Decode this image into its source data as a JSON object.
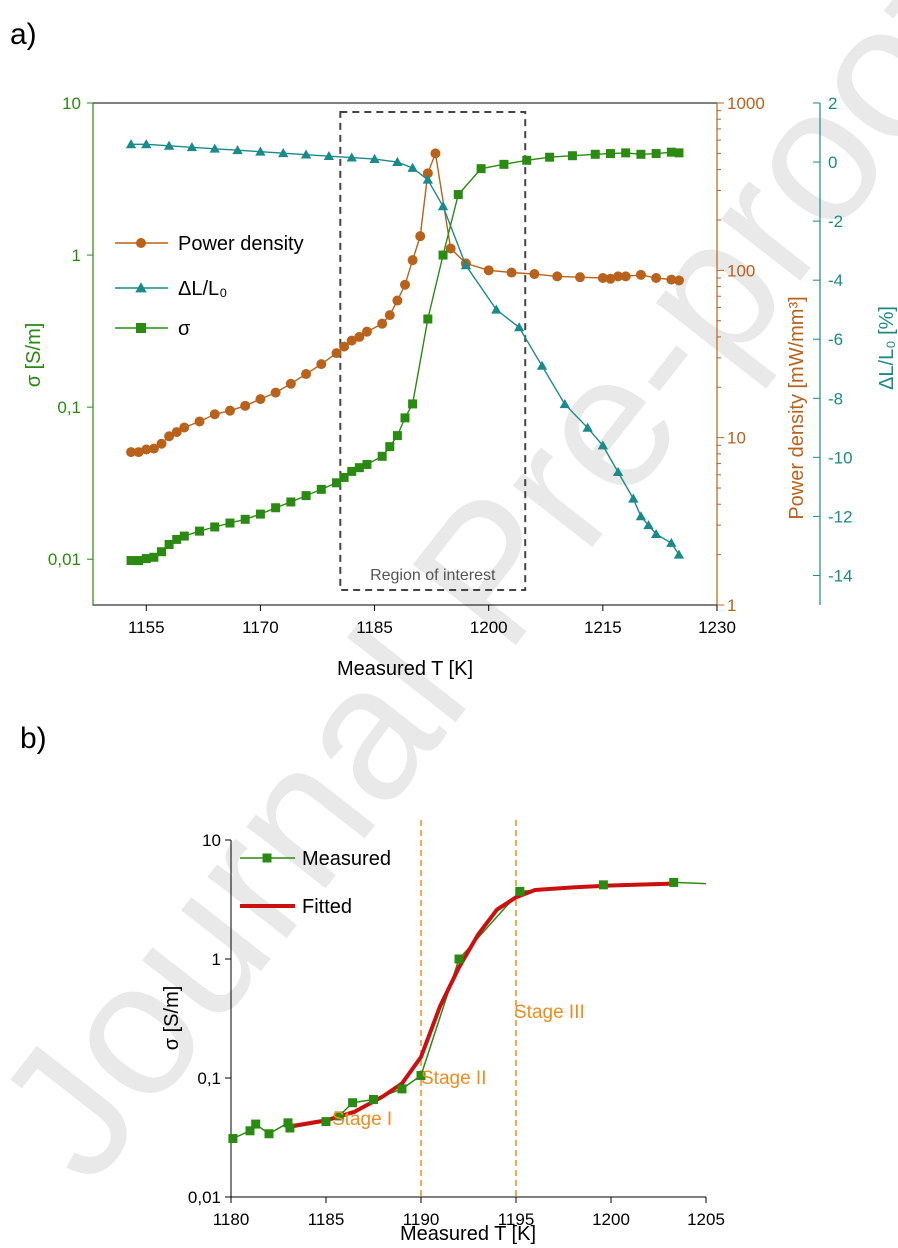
{
  "watermark": "Journal Pre-proof",
  "colors": {
    "sigma": "#2a8a12",
    "power": "#b8621b",
    "shrink": "#1a8a8a",
    "fitted": "#cc1010",
    "stage": "#f08c1e",
    "roi": "#444444"
  },
  "chart_data": [
    {
      "panel_label": "a)",
      "type": "line",
      "xlabel": "Measured T [K]",
      "xlim": [
        1148,
        1230
      ],
      "xticks": [
        1155,
        1170,
        1185,
        1200,
        1215,
        1230
      ],
      "annotation": "Region of interest",
      "region_of_interest": [
        1180.5,
        1204.8
      ],
      "axes": {
        "left": {
          "label": "σ [S/m]",
          "scale": "log",
          "lim": [
            0.005,
            10
          ],
          "ticks": [
            0.01,
            0.1,
            1,
            10
          ],
          "tick_labels": [
            "0,01",
            "0,1",
            "1",
            "10"
          ],
          "color": "#2a8a12"
        },
        "right1": {
          "label": "Power density [mW/mm³]",
          "scale": "log",
          "lim": [
            1,
            1000
          ],
          "ticks": [
            1,
            10,
            100,
            1000
          ],
          "tick_labels": [
            "1",
            "10",
            "100",
            "1000"
          ],
          "color": "#b8621b"
        },
        "right2": {
          "label": "ΔL/L₀ [%]",
          "scale": "linear",
          "lim": [
            -15,
            2
          ],
          "ticks": [
            -14,
            -12,
            -10,
            -8,
            -6,
            -4,
            -2,
            0,
            2
          ],
          "tick_labels": [
            "-14",
            "-12",
            "-10",
            "-8",
            "-6",
            "-4",
            "-2",
            "0",
            "2"
          ],
          "color": "#1a8a8a"
        }
      },
      "legend": {
        "position": "upper-left"
      },
      "series": [
        {
          "name": "Power density",
          "axis": "right1",
          "marker": "circle",
          "color": "#b8621b",
          "x": [
            1153,
            1154,
            1155,
            1156,
            1157,
            1158,
            1159,
            1160,
            1162,
            1164,
            1166,
            1168,
            1170,
            1172,
            1174,
            1176,
            1178,
            1180,
            1181,
            1182,
            1183,
            1184,
            1186,
            1187,
            1188,
            1189,
            1190,
            1191,
            1192,
            1193,
            1195,
            1197,
            1200,
            1203,
            1206,
            1209,
            1212,
            1215,
            1216,
            1217,
            1218,
            1220,
            1222,
            1224,
            1225
          ],
          "y": [
            8.2,
            8.2,
            8.5,
            8.6,
            9.2,
            10.2,
            10.8,
            11.5,
            12.5,
            13.8,
            14.5,
            15.5,
            17.0,
            18.6,
            21.0,
            24.0,
            27.5,
            32.0,
            35.0,
            38.0,
            40.0,
            43.0,
            48.0,
            54.0,
            66.0,
            82.0,
            115.0,
            160.0,
            380.0,
            500.0,
            135.0,
            110.0,
            100.0,
            97.0,
            95.0,
            92.0,
            91.0,
            90.0,
            89.0,
            92.0,
            92.0,
            94.0,
            90.0,
            88.0,
            87.0
          ]
        },
        {
          "name": "ΔL/L₀",
          "axis": "right2",
          "marker": "triangle",
          "color": "#1a8a8a",
          "x": [
            1153,
            1155,
            1158,
            1161,
            1164,
            1167,
            1170,
            1173,
            1176,
            1179,
            1182,
            1185,
            1188,
            1190,
            1192,
            1194,
            1197,
            1201,
            1204,
            1207,
            1210,
            1213,
            1215,
            1217,
            1219,
            1220,
            1221,
            1222,
            1224,
            1225
          ],
          "y": [
            0.6,
            0.6,
            0.55,
            0.5,
            0.45,
            0.4,
            0.35,
            0.3,
            0.25,
            0.2,
            0.15,
            0.1,
            0.0,
            -0.2,
            -0.6,
            -1.5,
            -3.5,
            -5.0,
            -5.6,
            -6.9,
            -8.2,
            -9.0,
            -9.6,
            -10.5,
            -11.4,
            -12.0,
            -12.3,
            -12.6,
            -12.9,
            -13.3
          ]
        },
        {
          "name": "σ",
          "axis": "left",
          "marker": "square",
          "color": "#2a8a12",
          "x": [
            1153,
            1154,
            1155,
            1156,
            1157,
            1158,
            1159,
            1160,
            1162,
            1164,
            1166,
            1168,
            1170,
            1172,
            1174,
            1176,
            1178,
            1180,
            1181,
            1182,
            1183,
            1184,
            1186,
            1187,
            1188,
            1189,
            1190,
            1192,
            1194,
            1196,
            1199,
            1202,
            1205,
            1208,
            1211,
            1214,
            1216,
            1218,
            1220,
            1222,
            1224,
            1225
          ],
          "y": [
            0.0098,
            0.0098,
            0.0101,
            0.0103,
            0.0112,
            0.0125,
            0.0135,
            0.0142,
            0.0153,
            0.0163,
            0.0173,
            0.0183,
            0.0198,
            0.0218,
            0.0238,
            0.0262,
            0.0288,
            0.0318,
            0.0345,
            0.0378,
            0.04,
            0.042,
            0.0475,
            0.055,
            0.065,
            0.085,
            0.105,
            0.38,
            1.0,
            2.5,
            3.7,
            3.95,
            4.2,
            4.4,
            4.5,
            4.6,
            4.65,
            4.7,
            4.6,
            4.65,
            4.75,
            4.7
          ]
        }
      ]
    },
    {
      "panel_label": "b)",
      "type": "line",
      "xlabel": "Measured T [K]",
      "ylabel": "σ [S/m]",
      "xlim": [
        1180,
        1205
      ],
      "ylim": [
        0.01,
        10
      ],
      "yscale": "log",
      "xticks": [
        1180,
        1185,
        1190,
        1195,
        1200,
        1205
      ],
      "yticks": [
        0.01,
        0.1,
        1,
        10
      ],
      "ytick_labels": [
        "0,01",
        "0,1",
        "1",
        "10"
      ],
      "legend": {
        "position": "upper-left"
      },
      "stage_boundaries": [
        1190,
        1195
      ],
      "annotations": [
        "Stage I",
        "Stage II",
        "Stage III"
      ],
      "series": [
        {
          "name": "Measured",
          "marker": "square",
          "color": "#2a8a12",
          "x": [
            1180.1,
            1181.0,
            1181.3,
            1182.0,
            1183.0,
            1183.1,
            1185.0,
            1185.7,
            1186.4,
            1187.5,
            1189.0,
            1190.0,
            1192.0,
            1195.2,
            1199.6,
            1203.3,
            1205.0
          ],
          "y": [
            0.031,
            0.036,
            0.041,
            0.034,
            0.042,
            0.038,
            0.043,
            0.048,
            0.062,
            0.066,
            0.081,
            0.105,
            1.0,
            3.7,
            4.2,
            4.4,
            4.3
          ]
        },
        {
          "name": "Fitted",
          "marker": "none",
          "color": "#cc1010",
          "x": [
            1183,
            1185,
            1186.5,
            1188,
            1189,
            1190,
            1191,
            1192,
            1193,
            1194,
            1195,
            1196,
            1198,
            1200,
            1203.3
          ],
          "y": [
            0.039,
            0.044,
            0.052,
            0.07,
            0.09,
            0.15,
            0.4,
            0.85,
            1.6,
            2.6,
            3.3,
            3.8,
            4.0,
            4.15,
            4.3
          ]
        }
      ]
    }
  ]
}
